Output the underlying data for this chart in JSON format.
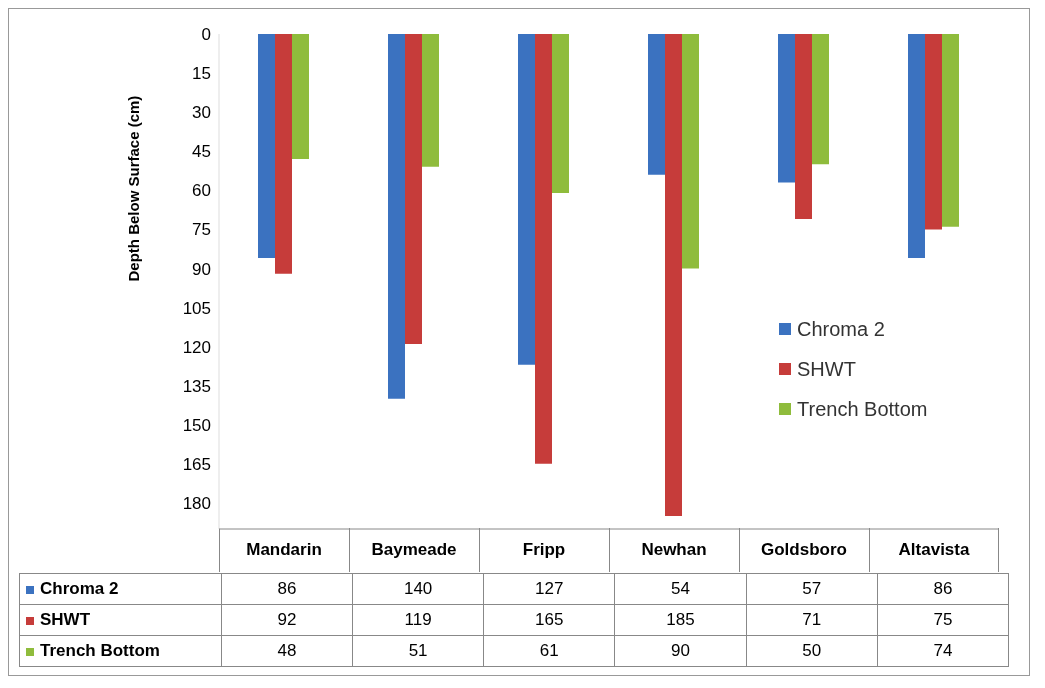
{
  "chart_data": {
    "type": "bar",
    "ylabel": "Depth Below Surface (cm)",
    "categories": [
      "Mandarin",
      "Baymeade",
      "Fripp",
      "Newhan",
      "Goldsboro",
      "Altavista"
    ],
    "series": [
      {
        "name": "Chroma 2",
        "color": "#3b72c0",
        "values": [
          86,
          140,
          127,
          54,
          57,
          86
        ]
      },
      {
        "name": "SHWT",
        "color": "#c63c3a",
        "values": [
          92,
          119,
          165,
          185,
          71,
          75
        ]
      },
      {
        "name": "Trench Bottom",
        "color": "#8fbc3c",
        "values": [
          48,
          51,
          61,
          90,
          50,
          74
        ]
      }
    ],
    "ylim": [
      190,
      0
    ],
    "yticks": [
      0,
      15,
      30,
      45,
      60,
      75,
      90,
      105,
      120,
      135,
      150,
      165,
      180
    ],
    "grid": false,
    "legend": "right",
    "data_labels": true
  }
}
